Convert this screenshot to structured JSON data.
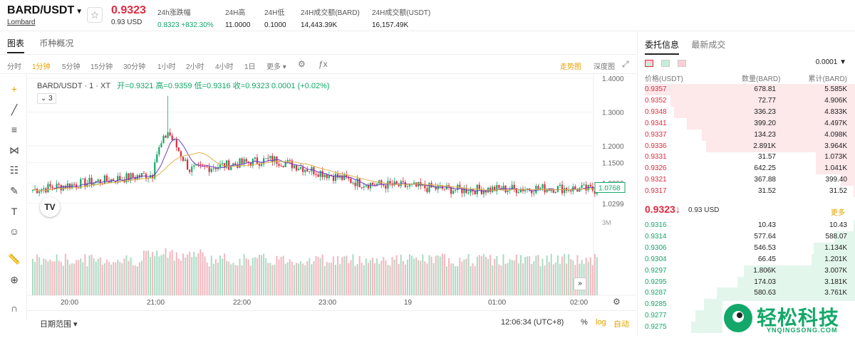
{
  "header": {
    "pair": "BARD/USDT",
    "exchange": "Lombard",
    "price": "0.9323",
    "price_usd": "0.93 USD",
    "stats": [
      {
        "label": "24h涨跌幅",
        "value": "0.8323 +832.30%"
      },
      {
        "label": "24H高",
        "value": "11.0000"
      },
      {
        "label": "24H低",
        "value": "0.1000"
      },
      {
        "label": "24H成交额(BARD)",
        "value": "14,443.39K"
      },
      {
        "label": "24H成交额(USDT)",
        "value": "16,157.49K"
      }
    ]
  },
  "tabs": [
    "图表",
    "币种概况"
  ],
  "intervals": [
    "分时",
    "1分钟",
    "5分钟",
    "15分钟",
    "30分钟",
    "1小时",
    "2小时",
    "4小时",
    "1日",
    "更多"
  ],
  "active_interval": "1分钟",
  "view_modes": [
    "走势图",
    "深度图"
  ],
  "chart": {
    "symbol_line": "BARD/USDT · 1 · XT",
    "open_label": "开=",
    "open": "0.9321",
    "high_label": "高=",
    "high": "0.9359",
    "low_label": "低=",
    "low": "0.9316",
    "close_label": "收=",
    "close": "0.9323",
    "change": "0.0001 (+0.02%)",
    "indicator_count": "3",
    "y_ticks": [
      "1.4000",
      "1.3000",
      "1.2000",
      "1.1500",
      "1.0899",
      "1.0299"
    ],
    "current_price_tag": "1.0768",
    "volume_label": "3M",
    "x_ticks": [
      "20:00",
      "21:00",
      "22:00",
      "23:00",
      "19",
      "01:00",
      "02:00"
    ]
  },
  "chart_data": {
    "type": "candlestick",
    "x": [
      "20:00",
      "21:00",
      "22:00",
      "23:00",
      "19",
      "01:00",
      "02:00"
    ],
    "close": [
      1.06,
      1.13,
      1.12,
      1.08,
      1.07,
      1.08,
      1.07
    ],
    "high": [
      1.14,
      1.35,
      1.22,
      1.1,
      1.09,
      1.09,
      1.1
    ],
    "low": [
      1.05,
      1.1,
      1.08,
      1.03,
      1.05,
      1.06,
      1.06
    ],
    "ylim": [
      1.0,
      1.41
    ]
  },
  "bottombar": {
    "date_range": "日期范围",
    "time": "12:06:34 (UTC+8)",
    "pct": "%",
    "log": "log",
    "auto": "自动"
  },
  "orderbook": {
    "tabs": [
      "委托信息",
      "最新成交"
    ],
    "precision": "0.0001",
    "headers": [
      "价格(USDT)",
      "数量(BARD)",
      "累计(BARD)"
    ],
    "asks": [
      {
        "price": "0.9357",
        "qty": "678.81",
        "total": "5.585K",
        "depth": 1.0
      },
      {
        "price": "0.9352",
        "qty": "72.77",
        "total": "4.906K",
        "depth": 0.88
      },
      {
        "price": "0.9348",
        "qty": "336.23",
        "total": "4.833K",
        "depth": 0.86
      },
      {
        "price": "0.9341",
        "qty": "399.20",
        "total": "4.497K",
        "depth": 0.8
      },
      {
        "price": "0.9337",
        "qty": "134.23",
        "total": "4.098K",
        "depth": 0.73
      },
      {
        "price": "0.9336",
        "qty": "2.891K",
        "total": "3.964K",
        "depth": 0.71
      },
      {
        "price": "0.9331",
        "qty": "31.57",
        "total": "1.073K",
        "depth": 0.19
      },
      {
        "price": "0.9326",
        "qty": "642.25",
        "total": "1.041K",
        "depth": 0.19
      },
      {
        "price": "0.9321",
        "qty": "367.88",
        "total": "399.40",
        "depth": 0.07
      },
      {
        "price": "0.9317",
        "qty": "31.52",
        "total": "31.52",
        "depth": 0.01
      }
    ],
    "mid_price": "0.9323",
    "mid_usd": "0.93 USD",
    "more": "更多",
    "bids": [
      {
        "price": "0.9316",
        "qty": "10.43",
        "total": "10.43",
        "depth": 0.01
      },
      {
        "price": "0.9314",
        "qty": "577.64",
        "total": "588.07",
        "depth": 0.1
      },
      {
        "price": "0.9306",
        "qty": "546.53",
        "total": "1.134K",
        "depth": 0.2
      },
      {
        "price": "0.9304",
        "qty": "66.45",
        "total": "1.201K",
        "depth": 0.21
      },
      {
        "price": "0.9297",
        "qty": "1.806K",
        "total": "3.007K",
        "depth": 0.53
      },
      {
        "price": "0.9295",
        "qty": "174.03",
        "total": "3.181K",
        "depth": 0.56
      },
      {
        "price": "0.9287",
        "qty": "580.63",
        "total": "3.761K",
        "depth": 0.66
      },
      {
        "price": "0.9285",
        "qty": "",
        "total": "",
        "depth": 0.72
      },
      {
        "price": "0.9277",
        "qty": "",
        "total": "",
        "depth": 0.76
      },
      {
        "price": "0.9275",
        "qty": "",
        "total": "",
        "depth": 0.78
      }
    ]
  },
  "watermark": {
    "name": "轻松科技",
    "url": "YNQINGSONG.COM"
  },
  "colors": {
    "up": "#13a869",
    "down": "#e0293f",
    "accent": "#e5a100"
  }
}
